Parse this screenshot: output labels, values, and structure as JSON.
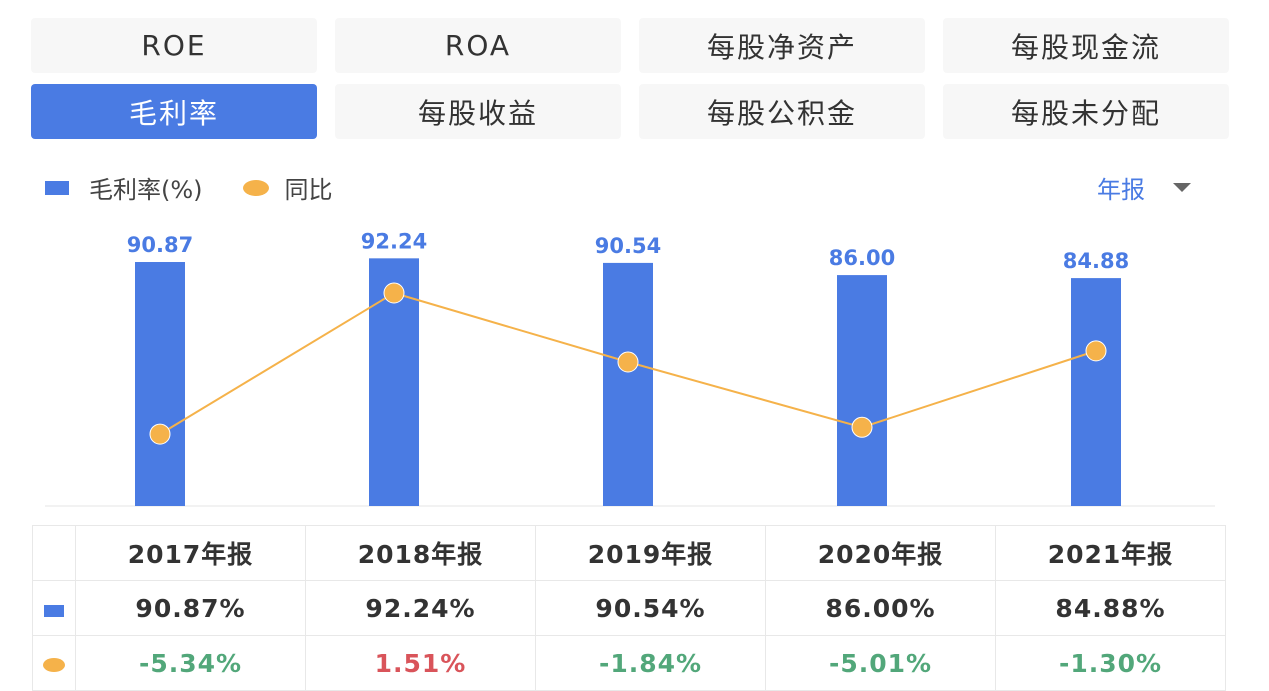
{
  "tabs": [
    {
      "label": "ROE"
    },
    {
      "label": "ROA"
    },
    {
      "label": "每股净资产"
    },
    {
      "label": "每股现金流"
    },
    {
      "label": "毛利率",
      "active": true
    },
    {
      "label": "每股收益"
    },
    {
      "label": "每股公积金"
    },
    {
      "label": "每股未分配"
    }
  ],
  "legend": {
    "bar": "毛利率(%)",
    "line": "同比"
  },
  "period": {
    "label": "年报",
    "icon": "caret-down-icon"
  },
  "colors": {
    "bar": "#4a7be3",
    "line": "#f5b24a",
    "negative": "#52a77a",
    "positive": "#d9545a"
  },
  "chart_data": {
    "type": "bar+line",
    "categories": [
      "2017年报",
      "2018年报",
      "2019年报",
      "2020年报",
      "2021年报"
    ],
    "series": [
      {
        "name": "毛利率(%)",
        "type": "bar",
        "values": [
          90.87,
          92.24,
          90.54,
          86.0,
          84.88
        ],
        "labels": [
          "90.87",
          "92.24",
          "90.54",
          "86.00",
          "84.88"
        ]
      },
      {
        "name": "同比",
        "type": "line",
        "values": [
          -5.34,
          1.51,
          -1.84,
          -5.01,
          -1.3
        ]
      }
    ],
    "grid": false,
    "legend_position": "top-left"
  },
  "table": {
    "headers": [
      "2017年报",
      "2018年报",
      "2019年报",
      "2020年报",
      "2021年报"
    ],
    "bar_row": [
      "90.87%",
      "92.24%",
      "90.54%",
      "86.00%",
      "84.88%"
    ],
    "yoy_row": [
      "-5.34%",
      "1.51%",
      "-1.84%",
      "-5.01%",
      "-1.30%"
    ]
  }
}
